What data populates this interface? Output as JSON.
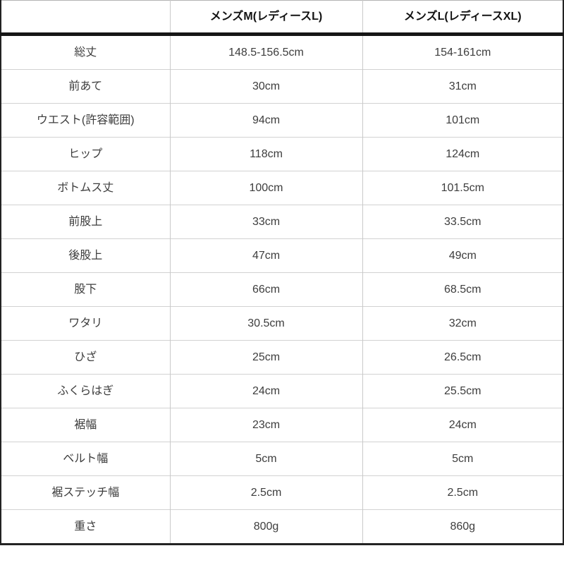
{
  "chart_data": {
    "type": "table",
    "columns": [
      {
        "label": ""
      },
      {
        "label": "メンズM(レディースL)"
      },
      {
        "label": "メンズL(レディースXL)"
      }
    ],
    "rows": [
      {
        "label": "総丈",
        "mens_m": "148.5-156.5cm",
        "mens_l": "154-161cm"
      },
      {
        "label": "前あて",
        "mens_m": "30cm",
        "mens_l": "31cm"
      },
      {
        "label": "ウエスト(許容範囲)",
        "mens_m": "94cm",
        "mens_l": "101cm"
      },
      {
        "label": "ヒップ",
        "mens_m": "118cm",
        "mens_l": "124cm"
      },
      {
        "label": "ボトムス丈",
        "mens_m": "100cm",
        "mens_l": "101.5cm"
      },
      {
        "label": "前股上",
        "mens_m": "33cm",
        "mens_l": "33.5cm"
      },
      {
        "label": "後股上",
        "mens_m": "47cm",
        "mens_l": "49cm"
      },
      {
        "label": "股下",
        "mens_m": "66cm",
        "mens_l": "68.5cm"
      },
      {
        "label": "ワタリ",
        "mens_m": "30.5cm",
        "mens_l": "32cm"
      },
      {
        "label": "ひざ",
        "mens_m": "25cm",
        "mens_l": "26.5cm"
      },
      {
        "label": "ふくらはぎ",
        "mens_m": "24cm",
        "mens_l": "25.5cm"
      },
      {
        "label": "裾幅",
        "mens_m": "23cm",
        "mens_l": "24cm"
      },
      {
        "label": "ベルト幅",
        "mens_m": "5cm",
        "mens_l": "5cm"
      },
      {
        "label": "裾ステッチ幅",
        "mens_m": "2.5cm",
        "mens_l": "2.5cm"
      },
      {
        "label": "重さ",
        "mens_m": "800g",
        "mens_l": "860g"
      }
    ]
  },
  "colors": {
    "background": "#ffffff",
    "header_text": "#111111",
    "cell_text": "#3d3d3d",
    "grid_line": "#c9c9c9",
    "row_line": "#d2d2d2",
    "outer_border": "#232323",
    "header_divider": "#161616"
  }
}
